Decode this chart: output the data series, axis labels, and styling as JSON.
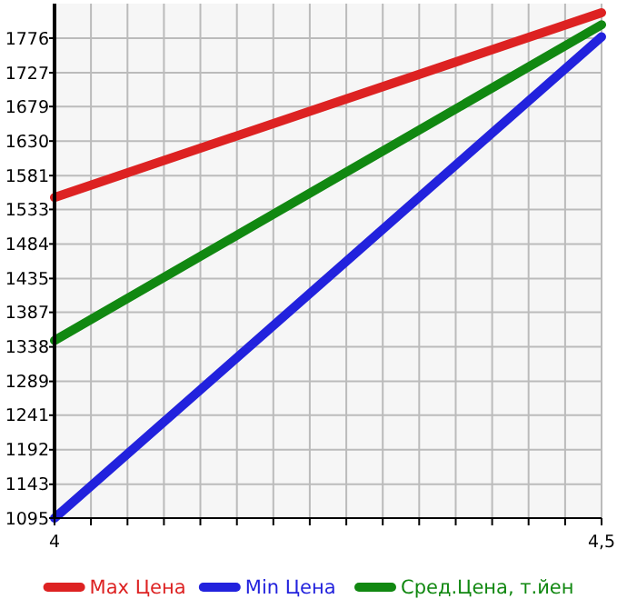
{
  "chart_data": {
    "type": "line",
    "x": [
      4,
      4.5
    ],
    "series": [
      {
        "name": "Max Цена",
        "color": "#dd2222",
        "values": [
          1550,
          1812
        ]
      },
      {
        "name": "Min Цена",
        "color": "#2222dd",
        "values": [
          1095,
          1778
        ]
      },
      {
        "name": "Сред.Цена, т.йен",
        "color": "#118811",
        "values": [
          1347,
          1795
        ]
      }
    ],
    "xlim": [
      4,
      4.5
    ],
    "xticks": [
      4,
      {
        "value": 4.0333,
        "label": null
      },
      {
        "value": 4.0667,
        "label": null
      },
      {
        "value": 4.1,
        "label": null
      },
      {
        "value": 4.1333,
        "label": null
      },
      {
        "value": 4.1667,
        "label": null
      },
      {
        "value": 4.2,
        "label": null
      },
      {
        "value": 4.2333,
        "label": null
      },
      {
        "value": 4.2667,
        "label": null
      },
      {
        "value": 4.3,
        "label": null
      },
      {
        "value": 4.3333,
        "label": null
      },
      {
        "value": 4.3667,
        "label": null
      },
      {
        "value": 4.4,
        "label": null
      },
      {
        "value": 4.4333,
        "label": null
      },
      {
        "value": 4.4667,
        "label": null
      },
      {
        "value": 4.5,
        "label": "4,5"
      }
    ],
    "ylim": [
      1095,
      1825
    ],
    "yticks": [
      1095,
      1143,
      1192,
      1241,
      1289,
      1338,
      1387,
      1435,
      1484,
      1533,
      1581,
      1630,
      1679,
      1727,
      1776
    ],
    "grid": true,
    "legend": "bottom",
    "marker": "none",
    "line_style": "solid"
  }
}
